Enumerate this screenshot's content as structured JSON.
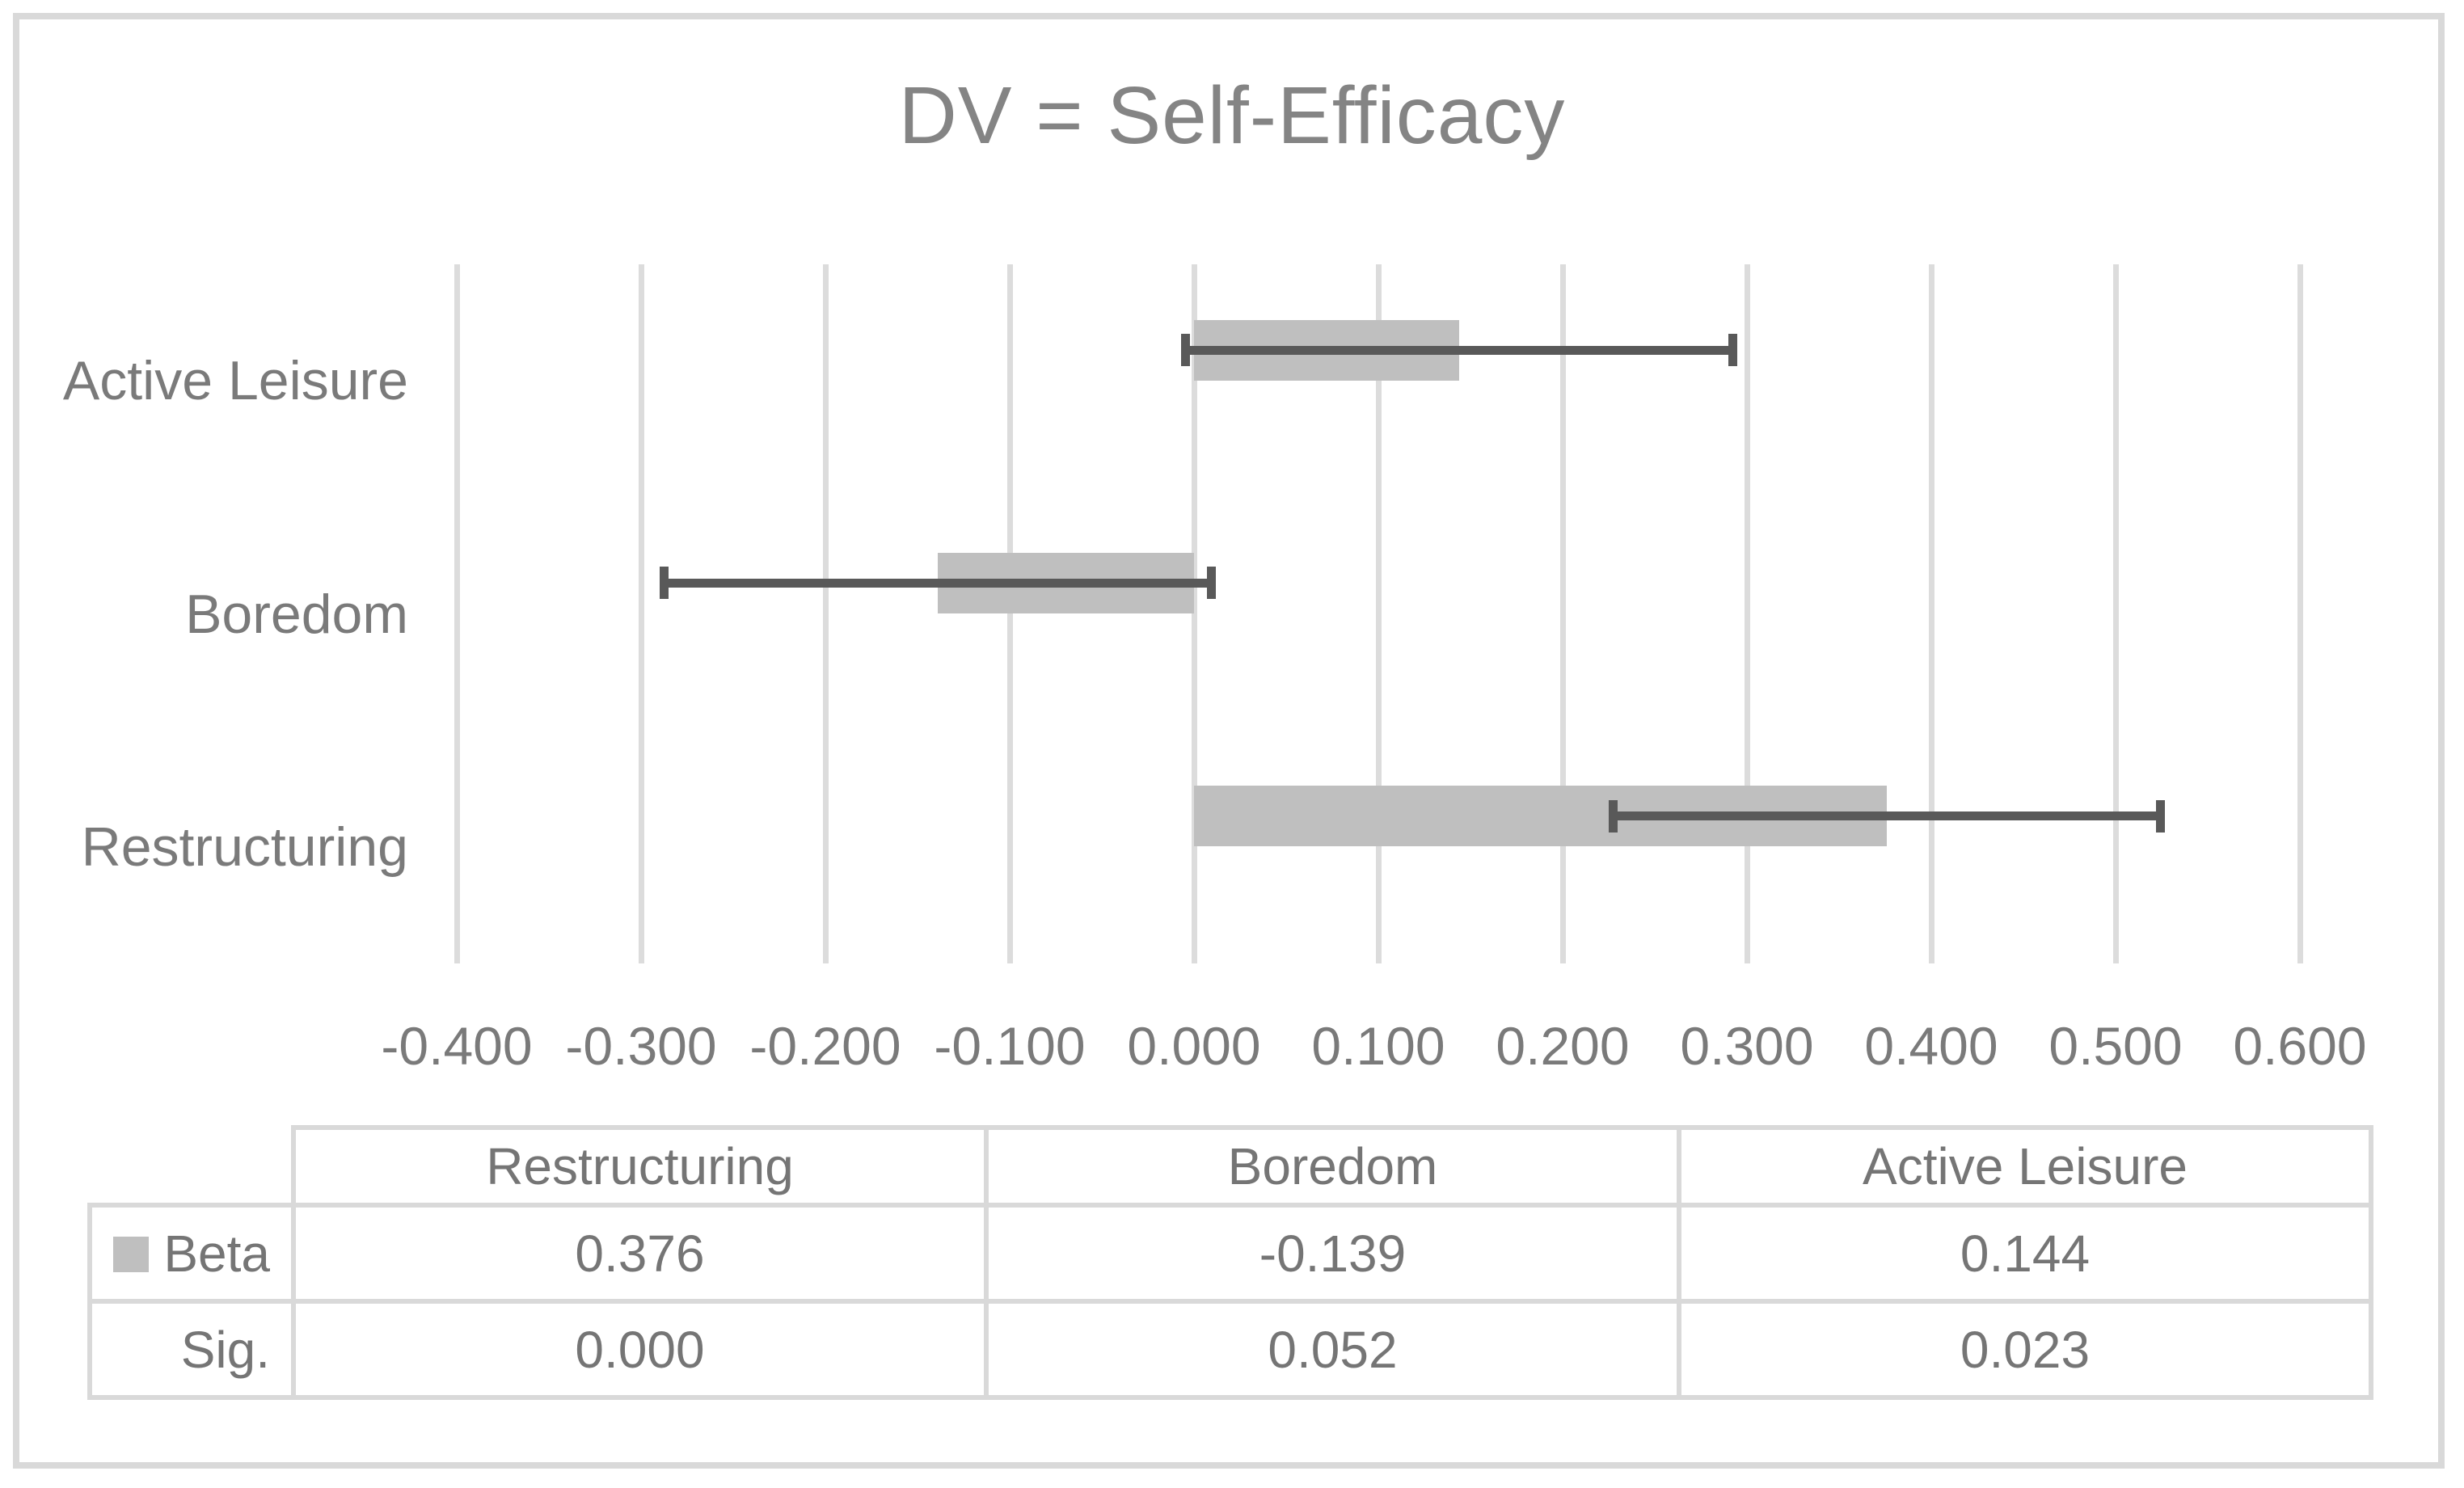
{
  "chart_data": {
    "type": "bar",
    "orientation": "horizontal",
    "title": "DV = Self-Efficacy",
    "categories": [
      "Active Leisure",
      "Boredom",
      "Restructuring"
    ],
    "series": [
      {
        "name": "Beta",
        "values": [
          0.144,
          -0.139,
          0.376
        ]
      }
    ],
    "error_bars": {
      "applies_to": "Beta",
      "type": "plus_minus",
      "values": [
        0.1485,
        0.1485,
        0.1485
      ]
    },
    "x_axis": {
      "min": -0.49,
      "max": 0.64,
      "tick_interval": 0.1,
      "ticks": [
        -0.4,
        -0.3,
        -0.2,
        -0.1,
        0,
        0.1,
        0.2,
        0.3,
        0.4,
        0.5,
        0.6
      ],
      "tick_labels": [
        "-0.400",
        "-0.300",
        "-0.200",
        "-0.100",
        "0.000",
        "0.100",
        "0.200",
        "0.300",
        "0.400",
        "0.500",
        "0.600"
      ]
    },
    "gridlines": true,
    "legend_position": "data-table-left",
    "data_table": {
      "columns": [
        "Restructuring",
        "Boredom",
        "Active Leisure"
      ],
      "rows": [
        {
          "label": "Beta",
          "has_legend_key": true,
          "values": [
            "0.376",
            "-0.139",
            "0.144"
          ]
        },
        {
          "label": "Sig.",
          "has_legend_key": false,
          "values": [
            "0.000",
            "0.052",
            "0.023"
          ]
        }
      ]
    },
    "colors": {
      "bar_fill": "#bfbfbf",
      "error_bar": "#595959",
      "gridline": "#dcdcdc",
      "border": "#d9d9d9",
      "text": "#7a7a7a",
      "title": "#848484"
    }
  }
}
